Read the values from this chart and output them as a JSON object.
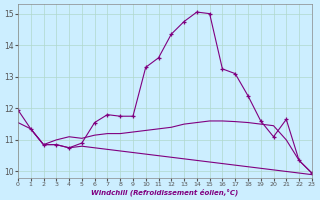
{
  "xlabel": "Windchill (Refroidissement éolien,°C)",
  "background_color": "#cceeff",
  "line_color": "#800080",
  "grid_color": "#b0d8cc",
  "xlim": [
    0,
    23
  ],
  "ylim": [
    9.8,
    15.3
  ],
  "xticks": [
    0,
    1,
    2,
    3,
    4,
    5,
    6,
    7,
    8,
    9,
    10,
    11,
    12,
    13,
    14,
    15,
    16,
    17,
    18,
    19,
    20,
    21,
    22,
    23
  ],
  "yticks": [
    10,
    11,
    12,
    13,
    14,
    15
  ],
  "line1_x": [
    0,
    1,
    2,
    3,
    4,
    5,
    6,
    7,
    8,
    9,
    10,
    11,
    12,
    13,
    14,
    15,
    16,
    17,
    18,
    19,
    20,
    21,
    22,
    23
  ],
  "line1_y": [
    11.95,
    11.35,
    10.85,
    10.85,
    10.75,
    10.9,
    11.55,
    11.8,
    11.75,
    11.75,
    13.3,
    13.6,
    14.35,
    14.75,
    15.05,
    15.0,
    13.25,
    13.1,
    12.4,
    11.6,
    11.1,
    11.65,
    10.35,
    9.95
  ],
  "line2_x": [
    0,
    1,
    2,
    3,
    4,
    5,
    6,
    7,
    8,
    9,
    10,
    11,
    12,
    13,
    14,
    15,
    16,
    17,
    18,
    19,
    20,
    21,
    22,
    23
  ],
  "line2_y": [
    11.55,
    11.35,
    10.85,
    11.0,
    11.1,
    11.05,
    11.15,
    11.2,
    11.2,
    11.25,
    11.3,
    11.35,
    11.4,
    11.5,
    11.55,
    11.6,
    11.6,
    11.58,
    11.55,
    11.5,
    11.45,
    11.0,
    10.35,
    9.95
  ],
  "line3_x": [
    1,
    2,
    3,
    4,
    5,
    6,
    7,
    8,
    9,
    10,
    11,
    12,
    13,
    14,
    15,
    16,
    17,
    18,
    19,
    20,
    21,
    22,
    23
  ],
  "line3_y": [
    11.35,
    10.85,
    10.85,
    10.75,
    10.8,
    10.75,
    10.7,
    10.65,
    10.6,
    10.55,
    10.5,
    10.45,
    10.4,
    10.35,
    10.3,
    10.25,
    10.2,
    10.15,
    10.1,
    10.05,
    10.0,
    9.95,
    9.9
  ]
}
